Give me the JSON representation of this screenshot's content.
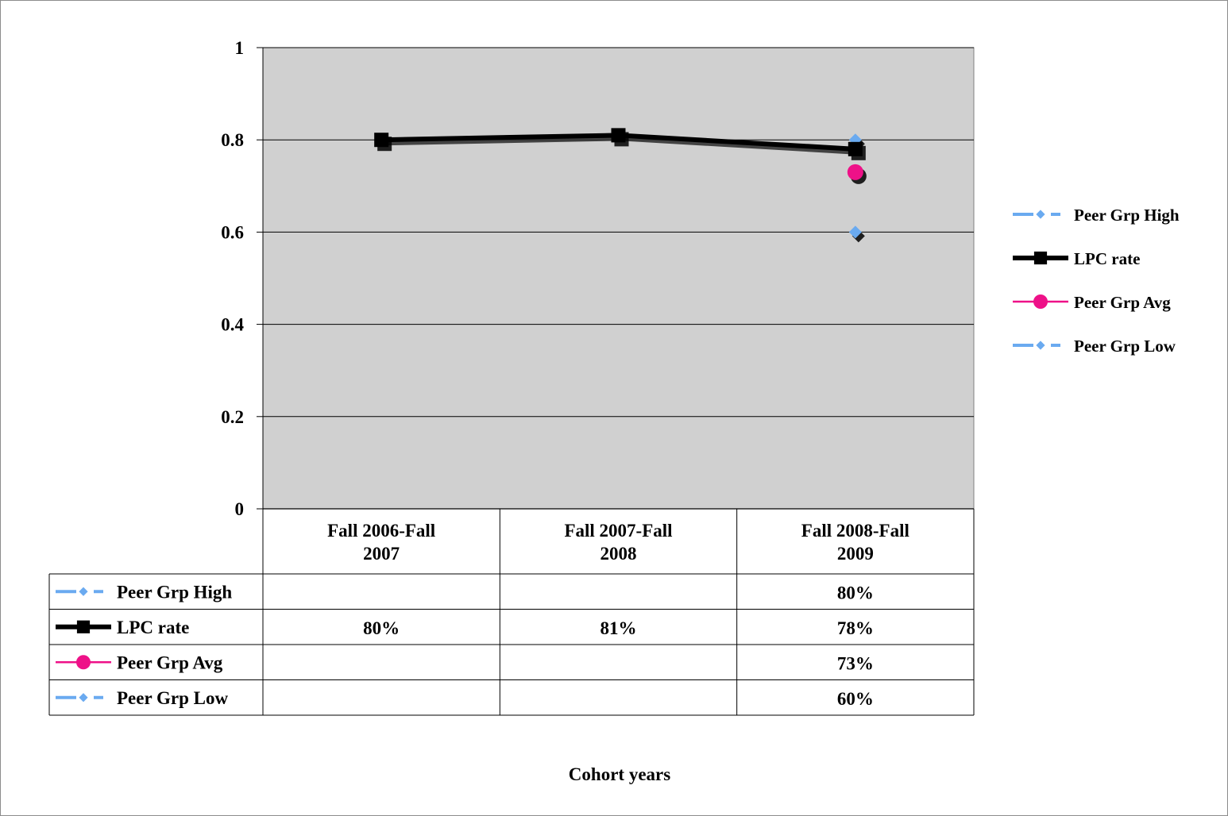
{
  "chart_data": {
    "type": "line",
    "title": "",
    "xlabel": "Cohort years",
    "ylabel": "",
    "ylim": [
      0,
      1
    ],
    "yticks": [
      0,
      0.2,
      0.4,
      0.6,
      0.8,
      1
    ],
    "ytick_labels": [
      "0",
      "0.2",
      "0.4",
      "0.6",
      "0.8",
      "1"
    ],
    "categories": [
      [
        "Fall 2006-Fall",
        "2007"
      ],
      [
        "Fall 2007-Fall",
        "2008"
      ],
      [
        "Fall 2008-Fall",
        "2009"
      ]
    ],
    "grid": true,
    "legend_position": "right",
    "plot_background": "#d0d0d0",
    "series": [
      {
        "name": "Peer Grp High",
        "values": [
          null,
          null,
          0.8
        ],
        "labels": [
          "",
          "",
          "80%"
        ],
        "color": "#6aaaf0",
        "marker": "diamond",
        "line": "dashed"
      },
      {
        "name": "LPC rate",
        "values": [
          0.8,
          0.81,
          0.78
        ],
        "labels": [
          "80%",
          "81%",
          "78%"
        ],
        "color": "#000000",
        "marker": "square",
        "line": "solid"
      },
      {
        "name": "Peer Grp Avg",
        "values": [
          null,
          null,
          0.73
        ],
        "labels": [
          "",
          "",
          "73%"
        ],
        "color": "#ee1188",
        "marker": "circle",
        "line": "solid"
      },
      {
        "name": "Peer Grp Low",
        "values": [
          null,
          null,
          0.6
        ],
        "labels": [
          "",
          "",
          "60%"
        ],
        "color": "#6aaaf0",
        "marker": "diamond",
        "line": "dashed"
      }
    ]
  }
}
